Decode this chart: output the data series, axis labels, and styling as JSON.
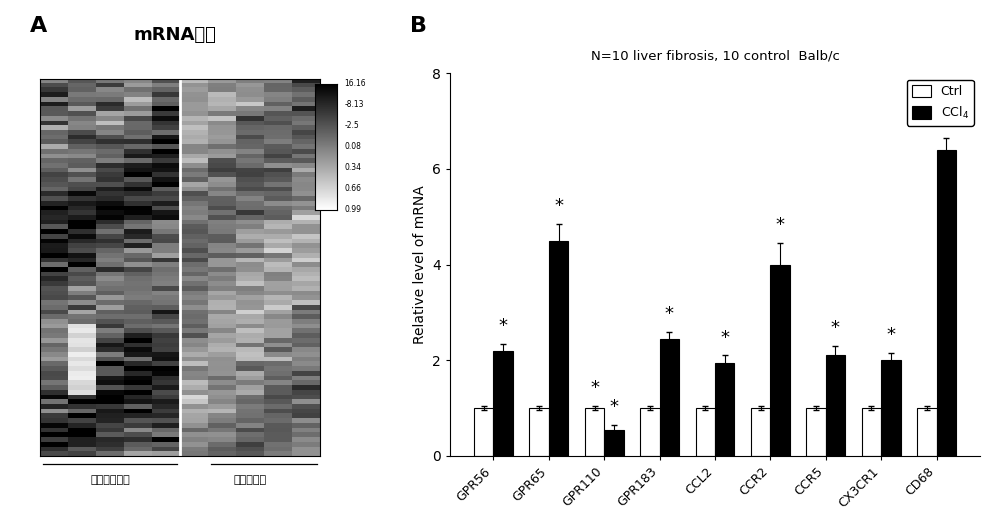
{
  "panel_A_title": "mRNA芯片",
  "panel_A_label": "A",
  "panel_B_label": "B",
  "col_label_left": "纤维化肝组织",
  "col_label_right": "正常肝组织",
  "colorbar_ticks": [
    "0.99",
    "0.66",
    "0.34",
    "0.08",
    "-2.5",
    "-8.13",
    "16.16"
  ],
  "bar_title": "N=10 liver fibrosis, 10 control  Balb/c",
  "bar_ylabel": "Relative level of mRNA",
  "bar_categories": [
    "GPR56",
    "GPR65",
    "GPR110",
    "GPR183",
    "CCL2",
    "CCR2",
    "CCR5",
    "CX3CR1",
    "CD68"
  ],
  "ctrl_values": [
    1.0,
    1.0,
    1.0,
    1.0,
    1.0,
    1.0,
    1.0,
    1.0,
    1.0
  ],
  "ccl4_values": [
    2.2,
    4.5,
    0.55,
    2.45,
    1.95,
    4.0,
    2.1,
    2.0,
    6.4
  ],
  "ctrl_errors": [
    0.05,
    0.05,
    0.05,
    0.05,
    0.05,
    0.05,
    0.05,
    0.05,
    0.05
  ],
  "ccl4_errors": [
    0.15,
    0.35,
    0.1,
    0.15,
    0.15,
    0.45,
    0.2,
    0.15,
    0.25
  ],
  "significant_ccl4": [
    true,
    true,
    true,
    true,
    true,
    true,
    true,
    true,
    true
  ],
  "significant_ctrl": [
    false,
    false,
    true,
    false,
    false,
    false,
    false,
    false,
    false
  ],
  "ylim": [
    0,
    8
  ],
  "yticks": [
    0,
    2,
    4,
    6,
    8
  ],
  "ctrl_color": "#ffffff",
  "ccl4_color": "#000000",
  "legend_ctrl": "Ctrl",
  "legend_ccl4": "CCl$_4$",
  "bar_width": 0.35,
  "background_color": "#ffffff"
}
